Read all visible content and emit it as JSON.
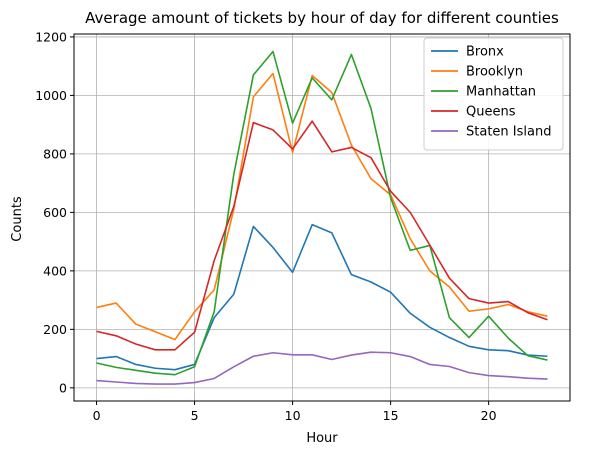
{
  "chart_data": {
    "type": "line",
    "title": "Average amount of tickets by hour of day for different counties",
    "xlabel": "Hour",
    "ylabel": "Counts",
    "xlim": [
      -1.15,
      24.15
    ],
    "ylim": [
      -45,
      1210
    ],
    "x_ticks": [
      0,
      5,
      10,
      15,
      20
    ],
    "y_ticks": [
      0,
      200,
      400,
      600,
      800,
      1000,
      1200
    ],
    "grid": true,
    "legend_position": "top-right",
    "x": [
      0,
      1,
      2,
      3,
      4,
      5,
      6,
      7,
      8,
      9,
      10,
      11,
      12,
      13,
      14,
      15,
      16,
      17,
      18,
      19,
      20,
      21,
      22,
      23
    ],
    "series": [
      {
        "name": "Bronx",
        "color": "#1f77b4",
        "values": [
          100,
          107,
          80,
          67,
          62,
          80,
          240,
          320,
          552,
          480,
          395,
          558,
          530,
          387,
          362,
          327,
          255,
          207,
          172,
          142,
          130,
          127,
          112,
          108
        ]
      },
      {
        "name": "Brooklyn",
        "color": "#ff7f0e",
        "values": [
          275,
          290,
          218,
          192,
          165,
          260,
          335,
          610,
          995,
          1075,
          805,
          1068,
          1010,
          830,
          715,
          660,
          510,
          400,
          345,
          262,
          270,
          285,
          260,
          245
        ]
      },
      {
        "name": "Manhattan",
        "color": "#2ca02c",
        "values": [
          85,
          70,
          60,
          50,
          45,
          72,
          260,
          730,
          1070,
          1150,
          905,
          1060,
          985,
          1140,
          955,
          650,
          470,
          487,
          240,
          172,
          245,
          170,
          110,
          95
        ]
      },
      {
        "name": "Queens",
        "color": "#d62728",
        "values": [
          193,
          178,
          150,
          130,
          130,
          190,
          435,
          620,
          907,
          882,
          817,
          912,
          807,
          822,
          787,
          672,
          600,
          488,
          375,
          305,
          290,
          295,
          257,
          233
        ]
      },
      {
        "name": "Staten Island",
        "color": "#9467bd",
        "values": [
          25,
          20,
          15,
          13,
          13,
          18,
          32,
          72,
          108,
          120,
          113,
          113,
          97,
          112,
          122,
          120,
          107,
          80,
          73,
          52,
          42,
          38,
          33,
          30
        ]
      }
    ]
  }
}
